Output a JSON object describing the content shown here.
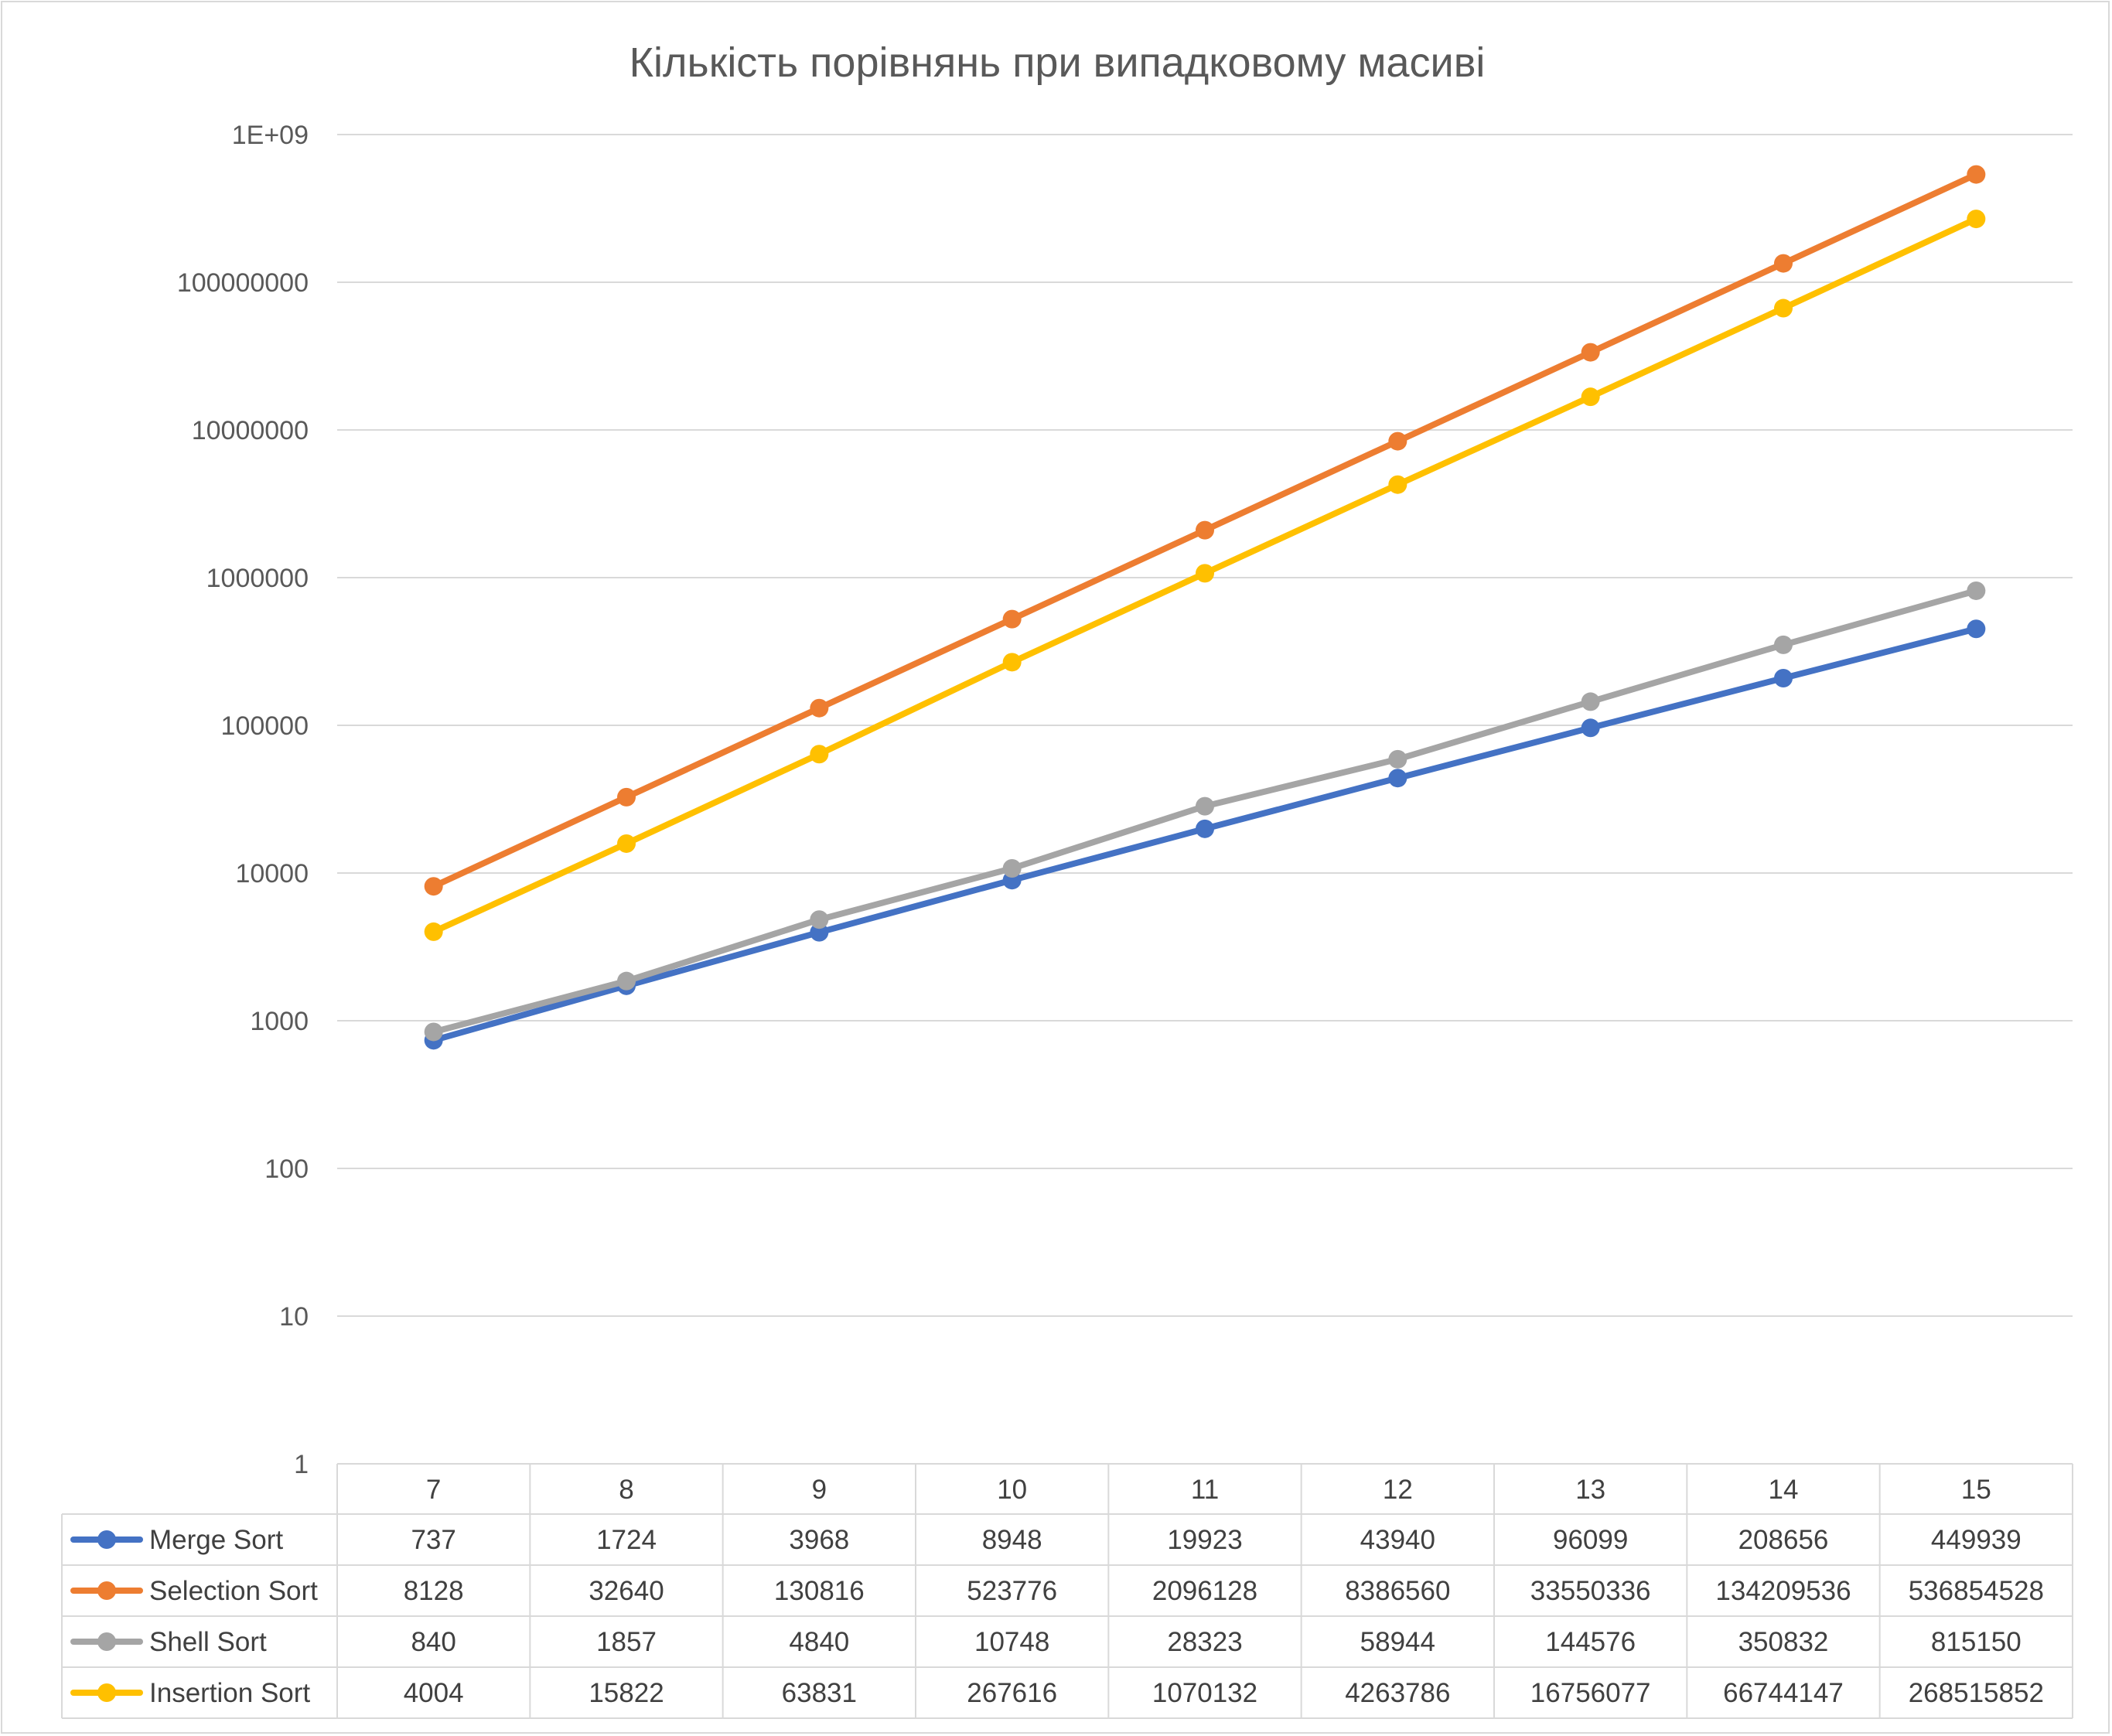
{
  "chart_data": {
    "type": "line",
    "title": "Кількість порівнянь при випадковому масиві",
    "xlabel": "",
    "ylabel": "",
    "y_scale": "log",
    "ylim": [
      1,
      1000000000
    ],
    "y_ticks": [
      "1",
      "10",
      "100",
      "1000",
      "10000",
      "100000",
      "1000000",
      "10000000",
      "100000000",
      "1E+09"
    ],
    "categories": [
      "7",
      "8",
      "9",
      "10",
      "11",
      "12",
      "13",
      "14",
      "15"
    ],
    "grid": true,
    "legend": "data-table",
    "series": [
      {
        "name": "Merge Sort",
        "color": "#4472C4",
        "values": [
          737,
          1724,
          3968,
          8948,
          19923,
          43940,
          96099,
          208656,
          449939
        ]
      },
      {
        "name": "Selection Sort",
        "color": "#ED7D31",
        "values": [
          8128,
          32640,
          130816,
          523776,
          2096128,
          8386560,
          33550336,
          134209536,
          536854528
        ]
      },
      {
        "name": "Shell Sort",
        "color": "#A5A5A5",
        "values": [
          840,
          1857,
          4840,
          10748,
          28323,
          58944,
          144576,
          350832,
          815150
        ]
      },
      {
        "name": "Insertion Sort",
        "color": "#FFC000",
        "values": [
          4004,
          15822,
          63831,
          267616,
          1070132,
          4263786,
          16756077,
          66744147,
          268515852
        ]
      }
    ]
  }
}
